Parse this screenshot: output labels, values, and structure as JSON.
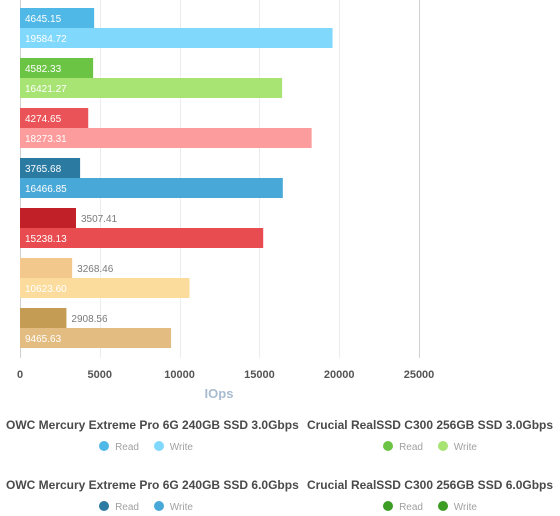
{
  "chart_data": {
    "type": "bar",
    "orientation": "horizontal",
    "xlabel": "IOps",
    "xlim": [
      0,
      25000
    ],
    "xticks": [
      0,
      5000,
      10000,
      15000,
      20000,
      25000
    ],
    "grid": true,
    "series": [
      {
        "name": "Read",
        "values": [
          4645.15,
          4582.33,
          4274.65,
          3765.68,
          3507.41,
          3268.46,
          2908.56
        ],
        "colors": [
          "#50b8e6",
          "#6cc444",
          "#ea5458",
          "#2a7aa2",
          "#c22028",
          "#f2c88c",
          "#c49c54"
        ]
      },
      {
        "name": "Write",
        "values": [
          19584.72,
          16421.27,
          18273.31,
          16466.85,
          15238.13,
          10623.6,
          9465.63
        ],
        "colors": [
          "#80d8fc",
          "#a8e474",
          "#fc9c9c",
          "#48a8d8",
          "#e84c50",
          "#fcdc9c",
          "#e2bc80"
        ]
      }
    ],
    "labels": {
      "read": [
        "4645.15",
        "4582.33",
        "4274.65",
        "3765.68",
        "3507.41",
        "3268.46",
        "2908.56"
      ],
      "write": [
        "19584.72",
        "16421.27",
        "18273.31",
        "16466.85",
        "15238.13",
        "10623.60",
        "9465.63"
      ]
    },
    "legend": [
      {
        "title": "OWC Mercury Extreme Pro 6G 240GB SSD 3.0Gbps",
        "items": [
          {
            "label": "Read",
            "color": "#50b8e6"
          },
          {
            "label": "Write",
            "color": "#80d8fc"
          }
        ]
      },
      {
        "title": "Crucial RealSSD C300 256GB SSD 3.0Gbps",
        "items": [
          {
            "label": "Read",
            "color": "#6cc444"
          },
          {
            "label": "Write",
            "color": "#a8e474"
          }
        ]
      },
      {
        "title": "OWC Mercury Extreme Pro 6G 240GB SSD 6.0Gbps",
        "items": [
          {
            "label": "Read",
            "color": "#2a7aa2"
          },
          {
            "label": "Write",
            "color": "#48a8d8"
          }
        ]
      },
      {
        "title": "Crucial RealSSD C300 256GB SSD 6.0Gbps",
        "items": [
          {
            "label": "Read",
            "color": "#3c9c24"
          },
          {
            "label": "Write",
            "color": "#3c9c24"
          }
        ]
      }
    ]
  }
}
